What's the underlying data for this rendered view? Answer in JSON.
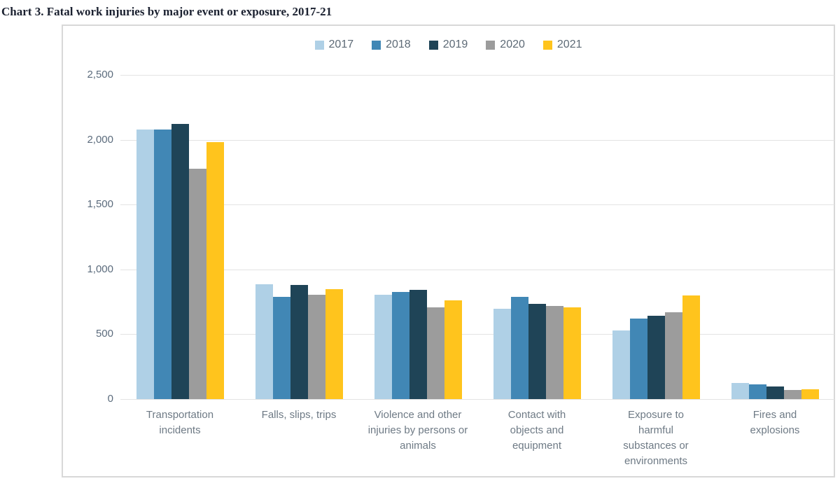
{
  "title": "Chart 3. Fatal work injuries by major event or exposure, 2017-21",
  "chart_data": {
    "type": "bar",
    "title": "Chart 3. Fatal work injuries by major event or exposure, 2017-21",
    "categories": [
      "Transportation incidents",
      "Falls, slips, trips",
      "Violence and other injuries by persons or animals",
      "Contact with objects and equipment",
      "Exposure to harmful substances or environments",
      "Fires and explosions"
    ],
    "series": [
      {
        "name": "2017",
        "color": "#afd0e6",
        "values": [
          2077,
          887,
          807,
          695,
          531,
          123
        ]
      },
      {
        "name": "2018",
        "color": "#4187b5",
        "values": [
          2080,
          791,
          828,
          786,
          621,
          115
        ]
      },
      {
        "name": "2019",
        "color": "#1f4457",
        "values": [
          2122,
          880,
          841,
          732,
          642,
          99
        ]
      },
      {
        "name": "2020",
        "color": "#9c9c9c",
        "values": [
          1778,
          805,
          705,
          716,
          672,
          72
        ]
      },
      {
        "name": "2021",
        "color": "#ffc41d",
        "values": [
          1982,
          850,
          761,
          705,
          798,
          77
        ]
      }
    ],
    "xlabel": "",
    "ylabel": "",
    "ylim": [
      0,
      2500
    ],
    "yticks": [
      0,
      500,
      1000,
      1500,
      2000,
      2500
    ],
    "ytick_labels": [
      "0",
      "500",
      "1,000",
      "1,500",
      "2,000",
      "2,500"
    ],
    "grid": true,
    "legend_position": "top-center"
  }
}
